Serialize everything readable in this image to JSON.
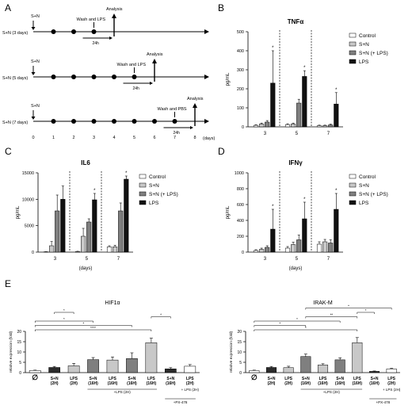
{
  "panels": {
    "a": "A",
    "b": "B",
    "c": "C",
    "d": "D",
    "e": "E"
  },
  "timeline": {
    "sn": "S+N",
    "rows": [
      {
        "label": "S+N (3 days)",
        "wash": "Wash and LPS",
        "analysis": "Analysis",
        "h24": "24h"
      },
      {
        "label": "S+N (5 days)",
        "wash": "Wash and LPS",
        "analysis": "Analysis",
        "h24": "24h"
      },
      {
        "label": "S+N (7 days)",
        "wash": "Wash and PBS",
        "analysis": "Analysis",
        "h24": "24h"
      }
    ],
    "days": [
      "0",
      "1",
      "2",
      "3",
      "4",
      "5",
      "6",
      "7",
      "8"
    ],
    "days_unit": "(days)"
  },
  "chart_data": [
    {
      "id": "B",
      "type": "bar",
      "title": "TNFα",
      "ylabel": "pg/mL",
      "xlabel": "",
      "categories": [
        "3",
        "5",
        "7"
      ],
      "ylim": [
        0,
        500
      ],
      "yticks": [
        "0",
        "100",
        "200",
        "300",
        "400",
        "500"
      ],
      "series": [
        {
          "name": "Control",
          "color": "#ffffff",
          "values": [
            8,
            12,
            6
          ],
          "err": [
            3,
            4,
            3
          ]
        },
        {
          "name": "S+N",
          "color": "#c8c8c8",
          "values": [
            15,
            15,
            6
          ],
          "err": [
            5,
            5,
            3
          ]
        },
        {
          "name": "S+N (+ LPS)",
          "color": "#7f7f7f",
          "values": [
            25,
            125,
            10
          ],
          "err": [
            8,
            20,
            4
          ]
        },
        {
          "name": "LPS",
          "color": "#111111",
          "values": [
            230,
            265,
            120
          ],
          "err": [
            170,
            30,
            60
          ]
        }
      ],
      "stars": [
        "*",
        "*",
        "*"
      ]
    },
    {
      "id": "C",
      "type": "bar",
      "title": "IL6",
      "ylabel": "pg/mL",
      "xlabel": "(days)",
      "categories": [
        "3",
        "5",
        "7"
      ],
      "ylim": [
        0,
        15000
      ],
      "yticks": [
        "0",
        "5000",
        "10000",
        "15000"
      ],
      "series": [
        {
          "name": "Control",
          "color": "#ffffff",
          "values": [
            50,
            100,
            1000
          ],
          "err": [
            30,
            60,
            200
          ]
        },
        {
          "name": "S+N",
          "color": "#c8c8c8",
          "values": [
            1200,
            3000,
            1000
          ],
          "err": [
            800,
            1500,
            300
          ]
        },
        {
          "name": "S+N (+ LPS)",
          "color": "#7f7f7f",
          "values": [
            7800,
            5700,
            7800
          ],
          "err": [
            3000,
            600,
            1500
          ]
        },
        {
          "name": "LPS",
          "color": "#111111",
          "values": [
            10000,
            9900,
            13800
          ],
          "err": [
            2500,
            1200,
            600
          ]
        }
      ],
      "stars": [
        "",
        "*",
        "*"
      ]
    },
    {
      "id": "D",
      "type": "bar",
      "title": "IFNγ",
      "ylabel": "pg/mL",
      "xlabel": "(days)",
      "categories": [
        "3",
        "5",
        "7"
      ],
      "ylim": [
        0,
        1000
      ],
      "yticks": [
        "0",
        "200",
        "400",
        "600",
        "800",
        "1000"
      ],
      "series": [
        {
          "name": "Control",
          "color": "#ffffff",
          "values": [
            20,
            50,
            100
          ],
          "err": [
            10,
            20,
            30
          ]
        },
        {
          "name": "S+N",
          "color": "#c8c8c8",
          "values": [
            35,
            95,
            130
          ],
          "err": [
            15,
            30,
            30
          ]
        },
        {
          "name": "S+N (+ LPS)",
          "color": "#7f7f7f",
          "values": [
            60,
            155,
            115
          ],
          "err": [
            20,
            60,
            40
          ]
        },
        {
          "name": "LPS",
          "color": "#111111",
          "values": [
            290,
            420,
            540
          ],
          "err": [
            250,
            210,
            200
          ]
        }
      ],
      "stars": [
        "*",
        "*",
        "*"
      ]
    },
    {
      "id": "E1",
      "type": "bar",
      "title": "HIF1α",
      "ylabel": "relative expression (fold)",
      "ylim": [
        0,
        20
      ],
      "yticks": [
        "0",
        "5",
        "10",
        "15",
        "20"
      ],
      "categories": [
        "∅",
        "S+N\n(2H)",
        "LPS\n(2H)",
        "S+N\n(16H)",
        "LPS\n(16H)",
        "S+N\n(16H)",
        "LPS\n(16H)",
        "S+N\n(16H)",
        "LPS\n(2H)"
      ],
      "values": [
        1,
        2.5,
        3.3,
        6.3,
        6.1,
        6.8,
        14.5,
        1.8,
        3.1
      ],
      "err": [
        0.2,
        0.5,
        1.2,
        1.0,
        1.5,
        2.8,
        2.2,
        0.6,
        0.8
      ],
      "colors": [
        "#ffffff",
        "#2b2b2b",
        "#c8c8c8",
        "#7f7f7f",
        "#c8c8c8",
        "#7f7f7f",
        "#c8c8c8",
        "#2b2b2b",
        "#ffffff"
      ],
      "group_labels": [
        "+LPS (2H)",
        "+ LPS (2H)",
        "+PX-478"
      ],
      "sig": [
        {
          "from": 0,
          "to": 6,
          "label": "****"
        },
        {
          "from": 0,
          "to": 5,
          "label": "*"
        },
        {
          "from": 0,
          "to": 3,
          "label": "*"
        },
        {
          "from": 6,
          "to": 7,
          "label": "*"
        },
        {
          "from": 1,
          "to": 2,
          "label": "*"
        }
      ]
    },
    {
      "id": "E2",
      "type": "bar",
      "title": "IRAK-M",
      "ylabel": "relative expression (fold)",
      "ylim": [
        0,
        20
      ],
      "yticks": [
        "0",
        "5",
        "10",
        "15",
        "20"
      ],
      "categories": [
        "∅",
        "S+N\n(2H)",
        "LPS\n(2H)",
        "S+N\n(16H)",
        "LPS\n(16H)",
        "S+N\n(16H)",
        "LPS\n(16H)",
        "S+N\n(16H)",
        "LPS\n(2H)"
      ],
      "values": [
        1,
        2.5,
        2.4,
        7.8,
        3.7,
        6.2,
        14.5,
        0.6,
        1.8
      ],
      "err": [
        0.2,
        0.5,
        0.7,
        1.2,
        0.6,
        1.0,
        2.5,
        0.2,
        0.3
      ],
      "colors": [
        "#ffffff",
        "#2b2b2b",
        "#c8c8c8",
        "#7f7f7f",
        "#c8c8c8",
        "#7f7f7f",
        "#c8c8c8",
        "#2b2b2b",
        "#ffffff"
      ],
      "group_labels": [
        "+LPS (2H)",
        "+ LPS (2H)",
        "+PX-478"
      ],
      "sig": [
        {
          "from": 0,
          "to": 6,
          "label": "*"
        },
        {
          "from": 0,
          "to": 3,
          "label": "*"
        },
        {
          "from": 0,
          "to": 5,
          "label": "*"
        },
        {
          "from": 3,
          "to": 6,
          "label": "**"
        },
        {
          "from": 6,
          "to": 7,
          "label": "*"
        },
        {
          "from": 3,
          "to": 8,
          "label": "*"
        }
      ]
    }
  ]
}
